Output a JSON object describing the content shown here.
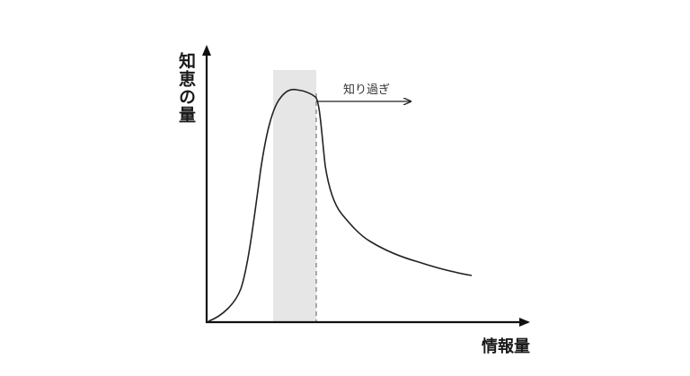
{
  "diagram": {
    "y_axis_label": "知恵の量",
    "x_axis_label": "情報量",
    "annotation": "知り過ぎ",
    "colors": {
      "axis": "#111111",
      "curve": "#222222",
      "highlight_band": "#e6e6e6",
      "dashed_line": "#777777"
    }
  }
}
